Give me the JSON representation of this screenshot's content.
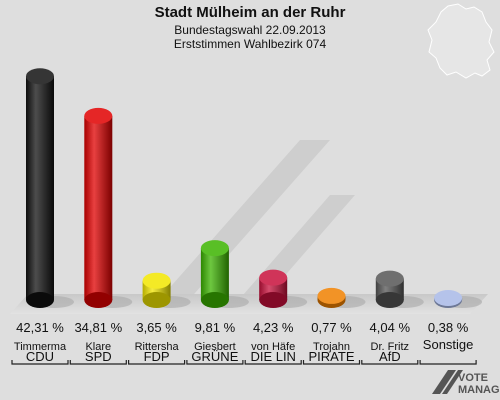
{
  "chart_data": {
    "type": "bar",
    "title": "Stadt Mülheim an der Ruhr",
    "subtitle": "Bundestagswahl 22.09.2013",
    "subtitle2": "Erststimmen Wahlbezirk 074",
    "xlabel": "",
    "ylabel": "",
    "ylim": [
      0,
      45
    ],
    "grid": false,
    "legend": "none",
    "categories": [
      "CDU",
      "SPD",
      "FDP",
      "GRÜNE",
      "DIE LIN",
      "PIRATE",
      "AfD",
      "Sonstige"
    ],
    "candidates": [
      "Timmerma",
      "Klare",
      "Rittersha",
      "Giesbert",
      "von Häfe",
      "Trojahn",
      "Dr. Fritz",
      ""
    ],
    "values": [
      42.31,
      34.81,
      3.65,
      9.81,
      4.23,
      0.77,
      4.04,
      0.38
    ],
    "value_labels": [
      "42,31 %",
      "34,81 %",
      "3,65 %",
      "9,81 %",
      "4,23 %",
      "0,77 %",
      "4,04 %",
      "0,38 %"
    ],
    "colors": [
      "#111111",
      "#e00000",
      "#f2e600",
      "#3cb400",
      "#c8103c",
      "#f08000",
      "#555555",
      "#a8b8e6"
    ]
  },
  "watermark": {
    "line1": "VOTE",
    "line2": "MANAGER"
  }
}
